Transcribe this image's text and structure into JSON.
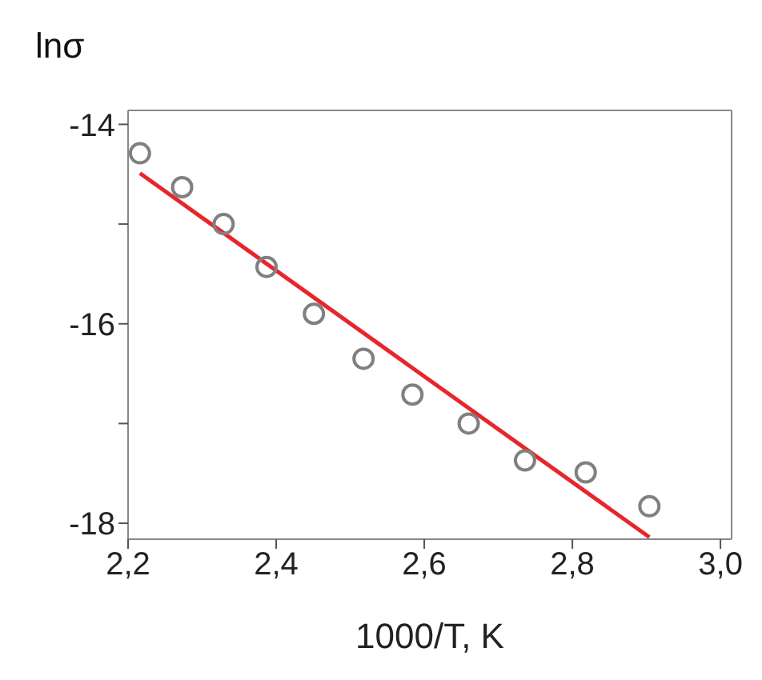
{
  "chart_data": {
    "type": "scatter",
    "ylabel": "lnσ",
    "xlabel": "1000/T, K",
    "x": [
      2.216,
      2.273,
      2.329,
      2.387,
      2.451,
      2.518,
      2.584,
      2.66,
      2.736,
      2.818,
      2.904
    ],
    "series": [
      {
        "color": "#808080",
        "marker": "circle",
        "values": [
          -14.29,
          -14.63,
          -15.0,
          -15.43,
          -15.9,
          -16.35,
          -16.71,
          -17.0,
          -17.37,
          -17.49,
          -17.83
        ]
      },
      {
        "type": "line",
        "color": "#e8262a",
        "marker": "none",
        "x": [
          2.216,
          2.904
        ],
        "values": [
          -14.49,
          -18.14
        ]
      }
    ],
    "xlim": [
      2.2,
      3.015
    ],
    "ylim": [
      -18.16,
      -13.86
    ],
    "xticks": [
      {
        "value": 2.2,
        "label": "2,2"
      },
      {
        "value": 2.4,
        "label": "2,4"
      },
      {
        "value": 2.6,
        "label": "2,6"
      },
      {
        "value": 2.8,
        "label": "2,8"
      },
      {
        "value": 3.0,
        "label": "3,0"
      }
    ],
    "yticks": [
      -14,
      {
        "value": -15,
        "label": null
      },
      -16,
      {
        "value": -17,
        "label": null
      },
      -18
    ],
    "grid": false,
    "legend": false
  }
}
